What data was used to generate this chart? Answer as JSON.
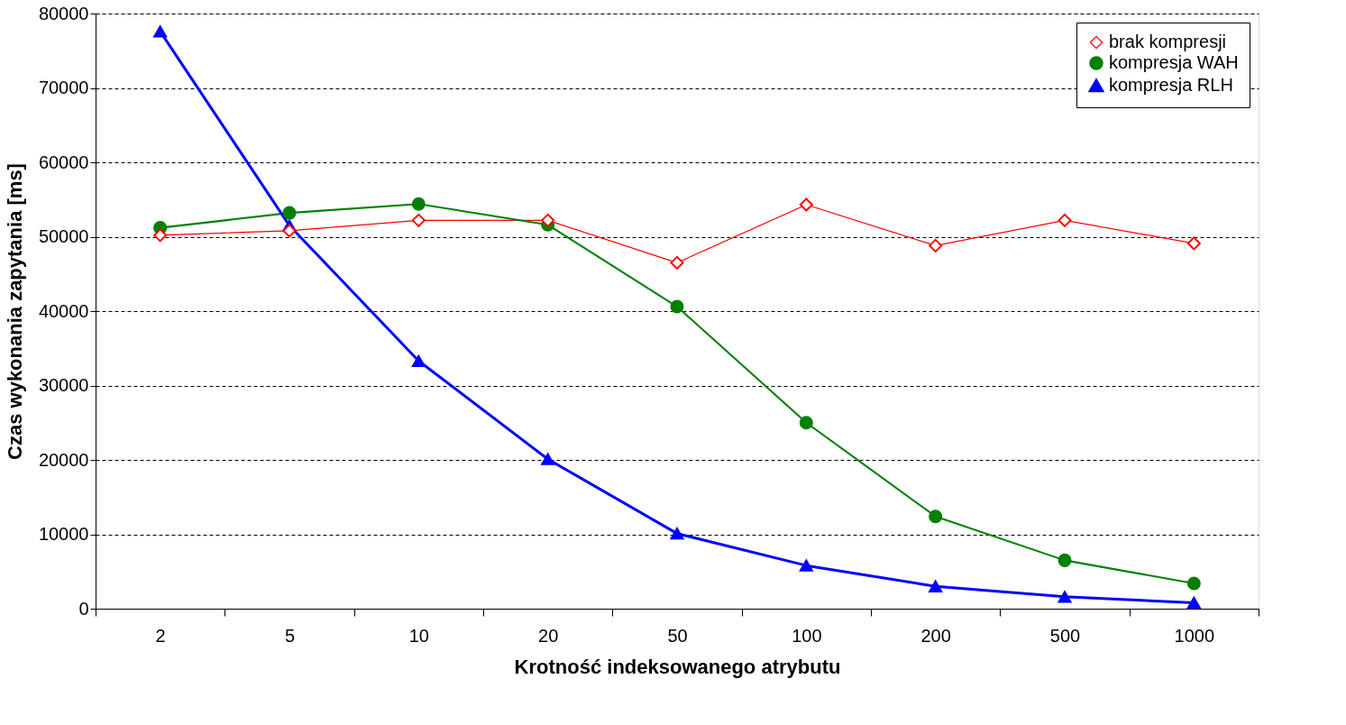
{
  "chart_data": {
    "type": "line",
    "xlabel": "Krotność indeksowanego atrybutu",
    "ylabel": "Czas wykonania zapytania [ms]",
    "categories": [
      "2",
      "5",
      "10",
      "20",
      "50",
      "100",
      "200",
      "500",
      "1000"
    ],
    "ylim": [
      0,
      80000
    ],
    "yticks": [
      0,
      10000,
      20000,
      30000,
      40000,
      50000,
      60000,
      70000,
      80000
    ],
    "grid": "y",
    "legend": "top right",
    "line_style": "solid",
    "series": [
      {
        "name": "brak kompresji",
        "color": "#ff0000",
        "marker": "diamond",
        "values": [
          50200,
          50800,
          52200,
          52200,
          46500,
          54300,
          48800,
          52200,
          49100
        ]
      },
      {
        "name": "kompresja WAH",
        "color": "#008000",
        "marker": "circle",
        "values": [
          51200,
          53200,
          54400,
          51600,
          40600,
          25000,
          12400,
          6500,
          3400
        ]
      },
      {
        "name": "kompresja RLH",
        "color": "#0000ff",
        "marker": "triangle",
        "values": [
          77600,
          51500,
          33300,
          20100,
          10100,
          5800,
          3000,
          1600,
          800
        ]
      }
    ]
  }
}
